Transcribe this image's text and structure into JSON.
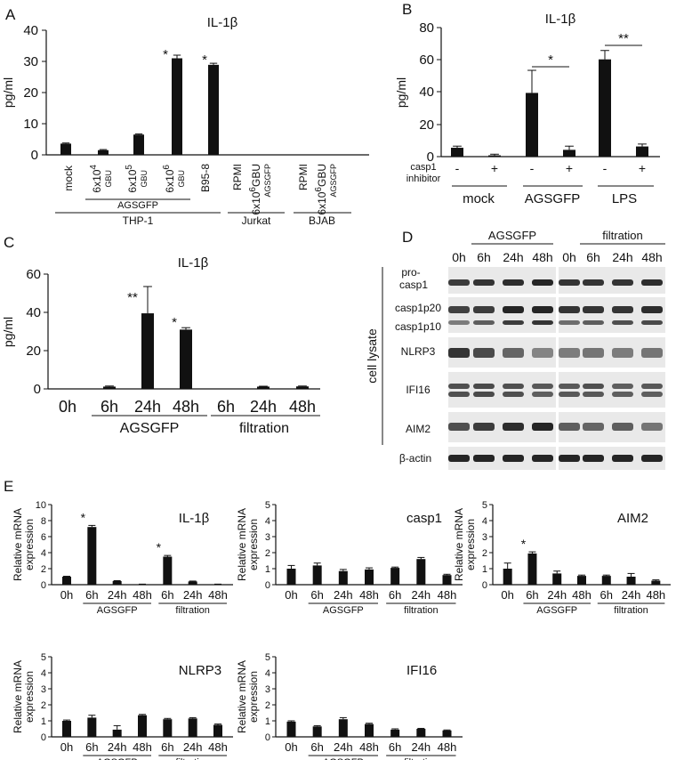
{
  "colors": {
    "bar": "#111111",
    "axis": "#111111",
    "blot_bg": "#e9e9e9",
    "band": "#1a1a1a"
  },
  "panels": {
    "A": {
      "letter": "A",
      "title": "IL-1β",
      "ylabel": "pg/ml",
      "yticks": [
        "0",
        "10",
        "20",
        "30",
        "40"
      ],
      "group_thp1": "THP-1",
      "group_jurkat": "Jurkat",
      "group_bjab": "BJAB",
      "subgroup_agsgfp": "AGSGFP",
      "gbu": "GBU",
      "labels": {
        "mock": "mock",
        "d4": "6x10",
        "e4": "4",
        "d5": "6x10",
        "e5": "5",
        "d6": "6x10",
        "e6": "6",
        "b95": "B95-8",
        "rpmi_j": "RPMI",
        "jd": "6x10",
        "je": "6",
        "rpmi_b": "RPMI",
        "bd": "6x10",
        "be": "6",
        "agsgfp_small": "AGSGFP"
      }
    },
    "B": {
      "letter": "B",
      "title": "IL-1β",
      "ylabel": "pg/ml",
      "yticks": [
        "0",
        "20",
        "40",
        "60",
        "80"
      ],
      "row_label_1": "casp1",
      "row_label_2": "inhibitor",
      "signs": [
        "-",
        "+",
        "-",
        "+",
        "-",
        "+"
      ],
      "groups": [
        "mock",
        "AGSGFP",
        "LPS"
      ],
      "sig1": "*",
      "sig2": "**"
    },
    "C": {
      "letter": "C",
      "title": "IL-1β",
      "ylabel": "pg/ml",
      "yticks": [
        "0",
        "20",
        "40",
        "60"
      ],
      "xticks": [
        "0h",
        "6h",
        "24h",
        "48h",
        "6h",
        "24h",
        "48h"
      ],
      "group1": "AGSGFP",
      "group2": "filtration",
      "sig_24": "**",
      "sig_48": "*"
    },
    "D": {
      "letter": "D",
      "group1": "AGSGFP",
      "group2": "filtration",
      "times": [
        "0h",
        "6h",
        "24h",
        "48h",
        "0h",
        "6h",
        "24h",
        "48h"
      ],
      "side_label": "cell lysate",
      "rows": [
        "pro-",
        "casp1",
        "casp1p20",
        "casp1p10",
        "NLRP3",
        "IFI16",
        "AIM2",
        "β-actin"
      ]
    },
    "E": {
      "letter": "E",
      "ylabel1": "Relative mRNA",
      "ylabel2": "expression",
      "xticks": [
        "0h",
        "6h",
        "24h",
        "48h",
        "6h",
        "24h",
        "48h"
      ],
      "group1": "AGSGFP",
      "group2": "filtration",
      "sig": "*",
      "sub": [
        {
          "title": "IL-1β",
          "yticks": [
            "0",
            "2",
            "4",
            "6",
            "8",
            "10"
          ]
        },
        {
          "title": "casp1",
          "yticks": [
            "0",
            "1",
            "2",
            "3",
            "4",
            "5"
          ]
        },
        {
          "title": "AIM2",
          "yticks": [
            "0",
            "1",
            "2",
            "3",
            "4",
            "5"
          ]
        },
        {
          "title": "NLRP3",
          "yticks": [
            "0",
            "1",
            "2",
            "3",
            "4",
            "5"
          ]
        },
        {
          "title": "IFI16",
          "yticks": [
            "0",
            "1",
            "2",
            "3",
            "4",
            "5"
          ]
        }
      ]
    }
  },
  "chart_data": [
    {
      "panel": "A",
      "type": "bar",
      "title": "IL-1β",
      "ylabel": "pg/ml",
      "ylim": [
        0,
        40
      ],
      "categories": [
        "mock",
        "6x10^4 GBU",
        "6x10^5 GBU",
        "6x10^6 GBU",
        "B95-8",
        "RPMI (Jurkat)",
        "6x10^6 GBU AGSGFP (Jurkat)",
        "RPMI (BJAB)",
        "6x10^6 GBU AGSGFP (BJAB)"
      ],
      "values": [
        3.6,
        1.5,
        6.5,
        31,
        28.9,
        0,
        0,
        0,
        0
      ],
      "errors": [
        0.2,
        0.2,
        0.2,
        1.0,
        0.5,
        0,
        0,
        0,
        0
      ],
      "significance": [
        "",
        "",
        "",
        "*",
        "*",
        "",
        "",
        "",
        ""
      ]
    },
    {
      "panel": "B",
      "type": "bar",
      "title": "IL-1β",
      "ylabel": "pg/ml",
      "ylim": [
        0,
        80
      ],
      "categories": [
        "mock -",
        "mock +",
        "AGSGFP -",
        "AGSGFP +",
        "LPS -",
        "LPS +"
      ],
      "values": [
        5.5,
        0.8,
        39.5,
        4.2,
        60.3,
        6.3
      ],
      "errors": [
        1.0,
        0.7,
        14.0,
        2.3,
        5.5,
        1.5
      ]
    },
    {
      "panel": "C",
      "type": "bar",
      "title": "IL-1β",
      "ylabel": "pg/ml",
      "ylim": [
        0,
        60
      ],
      "categories": [
        "0h",
        "6h AGSGFP",
        "24h AGSGFP",
        "48h AGSGFP",
        "6h filtration",
        "24h filtration",
        "48h filtration"
      ],
      "values": [
        0,
        1.2,
        39.5,
        31,
        0,
        1.2,
        1.3
      ],
      "errors": [
        0,
        0.3,
        14.0,
        1.0,
        0,
        0.2,
        0.2
      ],
      "significance": [
        "",
        "",
        "**",
        "*",
        "",
        "",
        ""
      ]
    },
    {
      "panel": "E",
      "type": "bar",
      "title": "IL-1β",
      "ylabel": "Relative mRNA expression",
      "ylim": [
        0,
        10
      ],
      "categories": [
        "0h",
        "6h AGSGFP",
        "24h AGSGFP",
        "48h AGSGFP",
        "6h filtration",
        "24h filtration",
        "48h filtration"
      ],
      "values": [
        1.0,
        7.2,
        0.45,
        0.05,
        3.5,
        0.4,
        0.05
      ],
      "errors": [
        0.05,
        0.2,
        0.05,
        0.02,
        0.15,
        0.05,
        0.02
      ],
      "significance": [
        "",
        "*",
        "",
        "",
        "*",
        "",
        ""
      ]
    },
    {
      "panel": "E",
      "type": "bar",
      "title": "casp1",
      "ylabel": "Relative mRNA expression",
      "ylim": [
        0,
        5
      ],
      "categories": [
        "0h",
        "6h AGSGFP",
        "24h AGSGFP",
        "48h AGSGFP",
        "6h filtration",
        "24h filtration",
        "48h filtration"
      ],
      "values": [
        1.0,
        1.2,
        0.85,
        0.95,
        1.05,
        1.6,
        0.6
      ],
      "errors": [
        0.2,
        0.15,
        0.1,
        0.1,
        0.05,
        0.1,
        0.05
      ]
    },
    {
      "panel": "E",
      "type": "bar",
      "title": "AIM2",
      "ylabel": "Relative mRNA expression",
      "ylim": [
        0,
        5
      ],
      "categories": [
        "0h",
        "6h AGSGFP",
        "24h AGSGFP",
        "48h AGSGFP",
        "6h filtration",
        "24h filtration",
        "48h filtration"
      ],
      "values": [
        1.0,
        1.95,
        0.7,
        0.55,
        0.55,
        0.5,
        0.25
      ],
      "errors": [
        0.35,
        0.1,
        0.15,
        0.05,
        0.05,
        0.2,
        0.05
      ],
      "significance": [
        "",
        "*",
        "",
        "",
        "",
        "",
        ""
      ]
    },
    {
      "panel": "E",
      "type": "bar",
      "title": "NLRP3",
      "ylabel": "Relative mRNA expression",
      "ylim": [
        0,
        5
      ],
      "categories": [
        "0h",
        "6h AGSGFP",
        "24h AGSGFP",
        "48h AGSGFP",
        "6h filtration",
        "24h filtration",
        "48h filtration"
      ],
      "values": [
        1.0,
        1.2,
        0.45,
        1.35,
        1.1,
        1.15,
        0.75
      ],
      "errors": [
        0.05,
        0.15,
        0.25,
        0.05,
        0.05,
        0.05,
        0.05
      ]
    },
    {
      "panel": "E",
      "type": "bar",
      "title": "IFI16",
      "ylabel": "Relative mRNA expression",
      "ylim": [
        0,
        5
      ],
      "categories": [
        "0h",
        "6h AGSGFP",
        "24h AGSGFP",
        "48h AGSGFP",
        "6h filtration",
        "24h filtration",
        "48h filtration"
      ],
      "values": [
        0.95,
        0.65,
        1.1,
        0.8,
        0.45,
        0.5,
        0.4
      ],
      "errors": [
        0.05,
        0.05,
        0.1,
        0.05,
        0.05,
        0.03,
        0.03
      ]
    }
  ]
}
